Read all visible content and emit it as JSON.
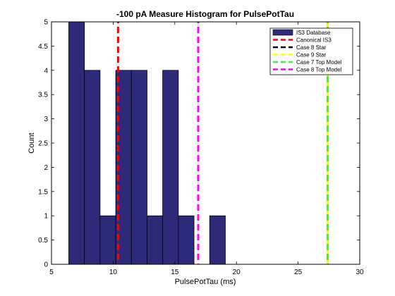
{
  "chart_data": {
    "type": "bar",
    "title": "-100 pA Measure Histogram for PulsePotTau",
    "xlabel": "PulsePotTau (ms)",
    "ylabel": "Count",
    "xlim": [
      5,
      30
    ],
    "ylim": [
      0,
      5
    ],
    "xticks": [
      "5",
      "10",
      "15",
      "20",
      "25",
      "30"
    ],
    "yticks": [
      "0",
      "0.5",
      "1",
      "1.5",
      "2",
      "2.5",
      "3",
      "3.5",
      "4",
      "4.5",
      "5"
    ],
    "histogram": {
      "name": "IS3 Database",
      "color": "#2e2a7a",
      "bins": [
        {
          "x0": 6.4,
          "x1": 7.67,
          "count": 5
        },
        {
          "x0": 7.67,
          "x1": 8.94,
          "count": 4
        },
        {
          "x0": 8.94,
          "x1": 10.21,
          "count": 1
        },
        {
          "x0": 10.21,
          "x1": 11.48,
          "count": 4
        },
        {
          "x0": 11.48,
          "x1": 12.75,
          "count": 4
        },
        {
          "x0": 12.75,
          "x1": 14.02,
          "count": 1
        },
        {
          "x0": 14.02,
          "x1": 15.29,
          "count": 4
        },
        {
          "x0": 15.29,
          "x1": 16.56,
          "count": 1
        },
        {
          "x0": 16.56,
          "x1": 17.83,
          "count": 0
        },
        {
          "x0": 17.83,
          "x1": 19.1,
          "count": 1
        }
      ]
    },
    "reference_lines": [
      {
        "name": "Canonical IS3",
        "x": 10.4,
        "color": "#ff0000",
        "style": "dashed"
      },
      {
        "name": "Case 8 Star",
        "x": 27.4,
        "color": "#000000",
        "style": "dashed"
      },
      {
        "name": "Case 9 Star",
        "x": 27.4,
        "color": "#ffff00",
        "style": "dashed"
      },
      {
        "name": "Case 7 Top Model",
        "x": 27.4,
        "color": "#44ee44",
        "style": "dashed"
      },
      {
        "name": "Case 8 Top Model",
        "x": 16.9,
        "color": "#ff00ff",
        "style": "dashed"
      }
    ],
    "legend": {
      "placement": "top-right",
      "entries": [
        {
          "label": "IS3 Database",
          "color": "#2e2a7a",
          "kind": "patch"
        },
        {
          "label": "Canonical IS3",
          "color": "#ff0000",
          "kind": "line"
        },
        {
          "label": "Case 8 Star",
          "color": "#000000",
          "kind": "line"
        },
        {
          "label": "Case 9 Star",
          "color": "#ffff00",
          "kind": "line"
        },
        {
          "label": "Case 7 Top Model",
          "color": "#44ee44",
          "kind": "line"
        },
        {
          "label": "Case 8 Top Model",
          "color": "#ff00ff",
          "kind": "line"
        }
      ]
    },
    "grid": false
  }
}
